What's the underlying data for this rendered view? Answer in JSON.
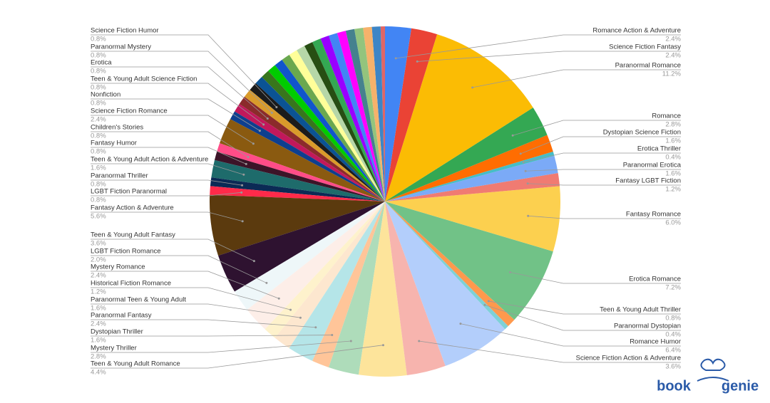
{
  "chart_data": {
    "type": "pie",
    "categories": [
      "Romance Action & Adventure",
      "Science Fiction Fantasy",
      "Paranormal Romance",
      "Romance",
      "Dystopian Science Fiction",
      "Erotica Thriller",
      "Paranormal Erotica",
      "Fantasy LGBT Fiction",
      "Fantasy Romance",
      "Erotica Romance",
      "Teen & Young Adult Thriller",
      "Paranormal Dystopian",
      "Romance Humor",
      "Science Fiction Action & Adventure",
      "Teen & Young Adult Romance",
      "Mystery Thriller",
      "Dystopian Thriller",
      "Paranormal Fantasy",
      "Paranormal Teen & Young Adult",
      "Historical Fiction Romance",
      "Mystery Romance",
      "LGBT Fiction Romance",
      "Teen & Young Adult Fantasy",
      "Fantasy Action & Adventure",
      "LGBT Fiction Paranormal",
      "Paranormal Thriller",
      "Teen & Young Adult Action & Adventure",
      "Fantasy Humor",
      "Children's Stories",
      "Science Fiction Romance",
      "Nonfiction",
      "Teen & Young Adult Science Fiction",
      "Erotica",
      "Paranormal Mystery",
      "Science Fiction Humor",
      null,
      null,
      null,
      null,
      null,
      null,
      null,
      null,
      null,
      null,
      null,
      null,
      null,
      null,
      null,
      null,
      null
    ],
    "values": [
      2.4,
      2.4,
      11.2,
      2.8,
      1.6,
      0.4,
      1.6,
      1.2,
      6.0,
      7.2,
      0.8,
      0.4,
      6.4,
      3.6,
      4.4,
      2.8,
      1.6,
      2.4,
      1.6,
      1.2,
      2.4,
      2.0,
      3.6,
      5.6,
      0.8,
      0.8,
      1.6,
      0.8,
      0.8,
      2.4,
      0.8,
      0.8,
      0.8,
      0.8,
      0.8,
      0.8,
      0.8,
      0.8,
      0.8,
      0.8,
      0.8,
      0.8,
      0.8,
      0.8,
      0.8,
      0.8,
      0.8,
      0.8,
      0.8,
      0.8,
      0.8,
      0.4
    ],
    "value_labels": [
      "2.4%",
      "2.4%",
      "11.2%",
      "2.8%",
      "1.6%",
      "0.4%",
      "1.6%",
      "1.2%",
      "6.0%",
      "7.2%",
      "0.8%",
      "0.4%",
      "6.4%",
      "3.6%",
      "4.4%",
      "2.8%",
      "1.6%",
      "2.4%",
      "1.6%",
      "1.2%",
      "2.4%",
      "2.0%",
      "3.6%",
      "5.6%",
      "0.8%",
      "0.8%",
      "1.6%",
      "0.8%",
      "0.8%",
      "2.4%",
      "0.8%",
      "0.8%",
      "0.8%",
      "0.8%",
      "0.8%",
      null,
      null,
      null,
      null,
      null,
      null,
      null,
      null,
      null,
      null,
      null,
      null,
      null,
      null,
      null,
      null,
      null
    ],
    "colors": [
      "#4285f4",
      "#ea4335",
      "#fbbc04",
      "#34a853",
      "#ff6d01",
      "#46bdc6",
      "#7baaf7",
      "#f07b72",
      "#fcd04f",
      "#71c287",
      "#ff994d",
      "#7ed1d7",
      "#b3cefb",
      "#f7b4ae",
      "#fde49b",
      "#aedcba",
      "#ffc599",
      "#b5e5e8",
      "#fde7cf",
      "#fef2cc",
      "#fdeee8",
      "#eef7f9",
      "#2e1230",
      "#5b3a0e",
      "#ff2a4a",
      "#0b2a55",
      "#1e6b6b",
      "#3c1428",
      "#ff4d88",
      "#8a5a10",
      "#0d3f8f",
      "#c2185b",
      "#8b2b2b",
      "#d99b2b",
      "#1b1b1b",
      "#0b5394",
      "#38761d",
      "#00cc00",
      "#1155cc",
      "#6aa84f",
      "#ffff99",
      "#b6d7a8",
      "#274e13",
      "#34a853",
      "#9900ff",
      "#4285f4",
      "#ff00ff",
      "#45818e",
      "#93c47d",
      "#f6b26b",
      "#3d85c6",
      "#e06666"
    ]
  },
  "logo": {
    "left": "book",
    "right": "genie"
  }
}
